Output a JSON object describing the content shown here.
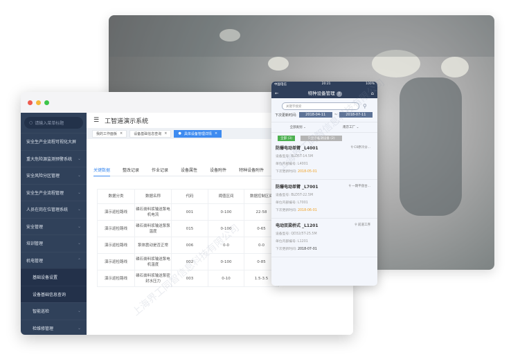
{
  "window": {
    "dots": [
      "#ee5b4f",
      "#f5b83a",
      "#3dc54a"
    ]
  },
  "sidebar": {
    "search_placeholder": "请输入菜单标题",
    "items": [
      {
        "label": "安全生产全流程可视化大屏",
        "chev": ""
      },
      {
        "label": "重大危险源监测预警系统",
        "chev": "⌄"
      },
      {
        "label": "安全风险分区管理",
        "chev": "⌄"
      },
      {
        "label": "安全生产全流程管理",
        "chev": "⌄"
      },
      {
        "label": "人员在岗在位管理系统",
        "chev": "⌄"
      },
      {
        "label": "安全管理",
        "chev": "⌄"
      },
      {
        "label": "培训管理",
        "chev": "⌄"
      },
      {
        "label": "机电管理",
        "chev": "⌃"
      },
      {
        "label": "基础设备设置",
        "chev": ""
      },
      {
        "label": "设备基础信息查询",
        "chev": ""
      },
      {
        "label": "智能巡检",
        "chev": "⌄"
      },
      {
        "label": "检维修管理",
        "chev": "⌄"
      }
    ]
  },
  "header": {
    "title": "工智道演示系统"
  },
  "tags": [
    {
      "label": "我的工作面板"
    },
    {
      "label": "设备基础信息查询"
    },
    {
      "label": "具体设备管理详情"
    }
  ],
  "tabs": [
    "关键数据",
    "整改记录",
    "作业记录",
    "设备属性",
    "设备附件",
    "特种设备附件"
  ],
  "table": {
    "headers": [
      "数据分类",
      "数据名称",
      "代码",
      "阈值区间",
      "数据控制区间"
    ],
    "rows": [
      [
        "演示巡检路线",
        "磷石膏料浆输送泵电机电流",
        "001",
        "0-100",
        "22-58"
      ],
      [
        "演示巡检路线",
        "磷石膏料浆输送泵泵温度",
        "015",
        "0-100",
        "0-65"
      ],
      [
        "演示巡检路线",
        "泵体震动是否正常",
        "006",
        "0-0",
        "0-0"
      ],
      [
        "演示巡检路线",
        "磷石膏料浆输送泵电机温度",
        "002",
        "0-100",
        "0-85"
      ],
      [
        "演示巡检路线",
        "磷石膏料浆输送泵密封水压力",
        "003",
        "0-10",
        "1.5-3.5"
      ]
    ]
  },
  "phone": {
    "carrier": "中国电信",
    "time": "20:21",
    "battery": "100%",
    "title": "特种设备管理",
    "help": "?",
    "search_placeholder": "关键字搜索",
    "date_label": "下次更新时间:",
    "date_from": "2018-04-11",
    "date_sep": "~",
    "date_to": "2018-07-11",
    "filter_type": "全部类别",
    "filter_site": "南京工厂",
    "btn_all": "全部 (3)",
    "btn_expired": "只显示临期设备 (2)",
    "colors": {
      "green": "#4cb050",
      "orange": "#f0a020",
      "navy": "#2f3f5a"
    },
    "cards": [
      {
        "title": "防爆电动单臂 _L4001",
        "loc": "C0原冷分...",
        "model": "设备型号: BLD5T-14.5M",
        "code": "单位内部编号: L4001",
        "date_label": "下次更新时间:",
        "date": "2018-05-01",
        "warn": true
      },
      {
        "title": "防爆电动单臂 _L7001",
        "loc": "一期平盘台...",
        "model": "设备型号: BLD5T-22.5M",
        "code": "单位内部编号: L7001",
        "date_label": "下次更新时间:",
        "date": "2018-06-01",
        "warn": true
      },
      {
        "title": "电动双梁桥式 _L1201",
        "loc": "前道工序",
        "model": "设备型号: QD32/5T-25.5M",
        "code": "单位内部编号: L1201",
        "date_label": "下次更新时间:",
        "date": "2018-07-01",
        "warn": false
      }
    ]
  },
  "watermark": "上海界工同智信息科技有限公司"
}
